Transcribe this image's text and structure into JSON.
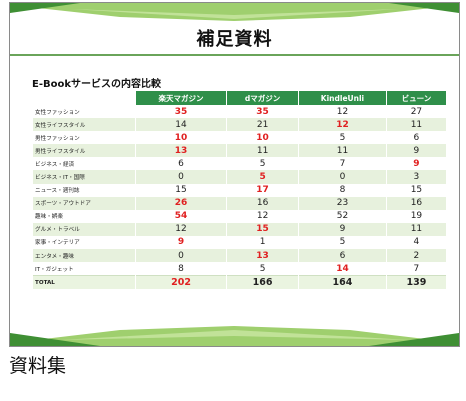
{
  "slide": {
    "title": "補足資料",
    "section_title": "E-Bookサービスの内容比較"
  },
  "table": {
    "headers": [
      "",
      "楽天マガジン",
      "dマガジン",
      "KindleUnli",
      "ビューン"
    ],
    "rows": [
      {
        "label": "女性ファッション",
        "values": [
          "35",
          "35",
          "12",
          "27"
        ],
        "highlight": [
          true,
          true,
          false,
          false
        ]
      },
      {
        "label": "女性ライフスタイル",
        "values": [
          "14",
          "21",
          "12",
          "11"
        ],
        "highlight": [
          false,
          false,
          true,
          false
        ]
      },
      {
        "label": "男性ファッション",
        "values": [
          "10",
          "10",
          "5",
          "6"
        ],
        "highlight": [
          true,
          true,
          false,
          false
        ]
      },
      {
        "label": "男性ライフスタイル",
        "values": [
          "13",
          "11",
          "11",
          "9"
        ],
        "highlight": [
          true,
          false,
          false,
          false
        ]
      },
      {
        "label": "ビジネス・経済",
        "values": [
          "6",
          "5",
          "7",
          "9"
        ],
        "highlight": [
          false,
          false,
          false,
          true
        ]
      },
      {
        "label": "ビジネス・IT・国際",
        "values": [
          "0",
          "5",
          "0",
          "3"
        ],
        "highlight": [
          false,
          true,
          false,
          false
        ]
      },
      {
        "label": "ニュース・週刊誌",
        "values": [
          "15",
          "17",
          "8",
          "15"
        ],
        "highlight": [
          false,
          true,
          false,
          false
        ]
      },
      {
        "label": "スポーツ・アウトドア",
        "values": [
          "26",
          "16",
          "23",
          "16"
        ],
        "highlight": [
          true,
          false,
          false,
          false
        ]
      },
      {
        "label": "趣味・娯楽",
        "values": [
          "54",
          "12",
          "52",
          "19"
        ],
        "highlight": [
          true,
          false,
          false,
          false
        ]
      },
      {
        "label": "グルメ・トラベル",
        "values": [
          "12",
          "15",
          "9",
          "11"
        ],
        "highlight": [
          false,
          true,
          false,
          false
        ]
      },
      {
        "label": "家事・インテリア",
        "values": [
          "9",
          "1",
          "5",
          "4"
        ],
        "highlight": [
          true,
          false,
          false,
          false
        ]
      },
      {
        "label": "エンタメ・趣味",
        "values": [
          "0",
          "13",
          "6",
          "2"
        ],
        "highlight": [
          false,
          true,
          false,
          false
        ]
      },
      {
        "label": "IT・ガジェット",
        "values": [
          "8",
          "5",
          "14",
          "7"
        ],
        "highlight": [
          false,
          false,
          true,
          false
        ]
      }
    ],
    "total": {
      "label": "TOTAL",
      "values": [
        "202",
        "166",
        "164",
        "139"
      ],
      "highlight": [
        true,
        false,
        false,
        false
      ]
    }
  },
  "caption": "資料集",
  "colors": {
    "header_green": "#2f8f4a",
    "row_alt": "#e7f1dd",
    "highlight_red": "#e02020",
    "ribbon_green": "#4d9a3a",
    "ribbon_light": "#a9d27a"
  }
}
